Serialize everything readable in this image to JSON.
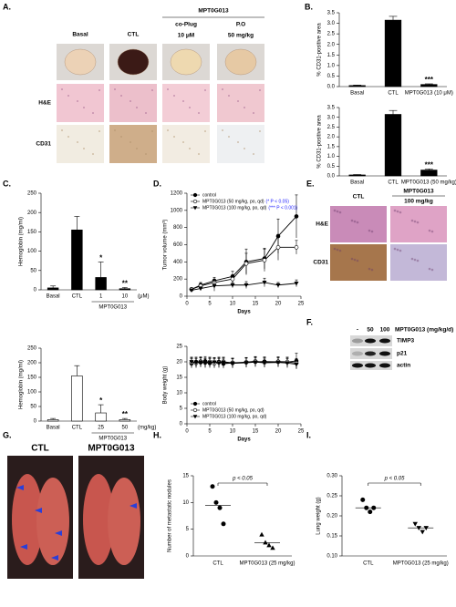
{
  "chart_data": [
    {
      "type": "bar",
      "ylabel": "% CD31-positive area",
      "categories": [
        "Basal",
        "CTL",
        "MPT0G013 (10 μM)"
      ],
      "values": [
        0.05,
        3.15,
        0.1
      ],
      "errors": [
        0.02,
        0.18,
        0.03
      ],
      "significance": [
        null,
        null,
        "***"
      ],
      "color": "#000000",
      "ylim": [
        0,
        3.5
      ],
      "yticks": [
        {
          "value": 0,
          "label": "0.0"
        },
        0.5,
        {
          "value": 1,
          "label": "1.0"
        },
        1.5,
        {
          "value": 2,
          "label": "2.0"
        },
        2.5,
        {
          "value": 3,
          "label": "3.0"
        },
        3.5
      ]
    },
    {
      "type": "bar",
      "ylabel": "% CD31-positive area",
      "categories": [
        "Basal",
        "CTL",
        "MPT0G013 (50 mg/kg)"
      ],
      "values": [
        0.05,
        3.15,
        0.3
      ],
      "errors": [
        0.02,
        0.2,
        0.06
      ],
      "significance": [
        null,
        null,
        "***"
      ],
      "color": "#000000",
      "ylim": [
        0,
        3.5
      ],
      "yticks": [
        {
          "value": 0,
          "label": "0.0"
        },
        0.5,
        {
          "value": 1,
          "label": "1.0"
        },
        1.5,
        {
          "value": 2,
          "label": "2.0"
        },
        2.5,
        {
          "value": 3,
          "label": "3.0"
        },
        3.5
      ]
    },
    {
      "type": "bar",
      "ylabel": "Hemoglobin (mg/ml)",
      "categories": [
        "Basal",
        "CTL",
        "1",
        "10"
      ],
      "group": {
        "label": "MPT0G013",
        "unit": "(μM)"
      },
      "values": [
        5,
        155,
        32,
        3
      ],
      "errors": [
        5,
        35,
        40,
        3
      ],
      "significance": [
        null,
        null,
        "*",
        "**"
      ],
      "color": "#000000",
      "ylim": [
        0,
        250
      ],
      "yticks": [
        0,
        50,
        100,
        150,
        200,
        250
      ]
    },
    {
      "type": "bar",
      "ylabel": "Hemoglobin (mg/ml)",
      "categories": [
        "Basal",
        "CTL",
        "25",
        "50"
      ],
      "group": {
        "label": "MPT0G013",
        "unit": "(mg/kg)"
      },
      "values": [
        5,
        155,
        28,
        5
      ],
      "errors": [
        4,
        35,
        28,
        4
      ],
      "significance": [
        null,
        null,
        "*",
        "**"
      ],
      "color": "#ffffff",
      "ylim": [
        0,
        250
      ],
      "yticks": [
        0,
        50,
        100,
        150,
        200,
        250
      ]
    },
    {
      "type": "line",
      "ylabel": "Tumor volume (mm³)",
      "xlabel": "Days",
      "legend": "upper left",
      "x": [
        1,
        3,
        6,
        10,
        13,
        17,
        20,
        24
      ],
      "series": [
        {
          "name": "control",
          "marker": "circle",
          "color": "#000000",
          "fill": "#000000",
          "values": [
            80,
            130,
            180,
            230,
            400,
            440,
            700,
            930
          ],
          "errors": [
            20,
            30,
            40,
            60,
            150,
            120,
            200,
            250
          ]
        },
        {
          "name": "MPT0G013 (50 mg/kg, po, qd)",
          "note": "(* P < 0.05)",
          "note_color": "#1a1aff",
          "marker": "circle",
          "color": "#000000",
          "fill": "#ffffff",
          "values": [
            80,
            120,
            160,
            200,
            380,
            420,
            570,
            570
          ],
          "errors": [
            20,
            30,
            40,
            50,
            120,
            130,
            150,
            80
          ]
        },
        {
          "name": "MPT0G013 (100 mg/kg, po, qd)",
          "note": "(*** P < 0.001)",
          "note_color": "#1a1aff",
          "marker": "triangle-down",
          "color": "#000000",
          "fill": "#000000",
          "values": [
            70,
            90,
            120,
            130,
            130,
            160,
            130,
            150
          ],
          "errors": [
            15,
            20,
            60,
            30,
            40,
            50,
            30,
            40
          ]
        }
      ],
      "xlim": [
        0,
        25
      ],
      "xticks": [
        0,
        5,
        10,
        15,
        20,
        25
      ],
      "ylim": [
        0,
        1200
      ],
      "yticks": [
        0,
        200,
        400,
        600,
        800,
        1000,
        1200
      ]
    },
    {
      "type": "line",
      "ylabel": "Body weight (g)",
      "xlabel": "Days",
      "legend": "lower left",
      "x": [
        1,
        2,
        3,
        4,
        5,
        6,
        7,
        8,
        10,
        13,
        15,
        17,
        20,
        22,
        24
      ],
      "series": [
        {
          "name": "control",
          "marker": "circle",
          "color": "#000000",
          "fill": "#000000",
          "values": [
            19.5,
            20,
            19.8,
            20.2,
            19.6,
            19.8,
            20,
            19.4,
            19.6,
            19.8,
            20,
            20.1,
            20,
            19.9,
            20.3
          ],
          "errors": [
            1.5,
            1.5,
            1.5,
            1.5,
            1.5,
            1.5,
            1.5,
            1.5,
            1.5,
            1.5,
            1.5,
            1.5,
            1.5,
            1.5,
            2.5
          ]
        },
        {
          "name": "MPT0G013 (50 mg/kg, po, qd)",
          "marker": "circle",
          "color": "#000000",
          "fill": "#ffffff",
          "values": [
            19.8,
            19.6,
            20.1,
            19.7,
            20,
            19.5,
            19.8,
            20,
            19.7,
            19.9,
            20.2,
            19.8,
            20.1,
            20,
            19.6
          ],
          "errors": [
            1.5,
            1.5,
            1.5,
            1.5,
            1.5,
            1.5,
            1.5,
            1.5,
            1.5,
            1.5,
            1.5,
            1.5,
            1.5,
            1.5,
            1.5
          ]
        },
        {
          "name": "MPT0G013 (100 mg/kg, po, qd)",
          "marker": "triangle-down",
          "color": "#000000",
          "fill": "#000000",
          "values": [
            20,
            19.7,
            19.9,
            19.6,
            19.8,
            19.9,
            19.6,
            19.8,
            19.5,
            19.7,
            19.9,
            19.7,
            19.8,
            19.6,
            19.2
          ],
          "errors": [
            1.5,
            1.5,
            1.5,
            1.5,
            1.5,
            1.5,
            1.5,
            1.5,
            1.5,
            1.5,
            1.5,
            1.5,
            1.5,
            1.5,
            1.5
          ]
        }
      ],
      "xlim": [
        0,
        25
      ],
      "xticks": [
        0,
        5,
        10,
        15,
        20,
        25
      ],
      "ylim": [
        0,
        25
      ],
      "yticks": [
        0,
        5,
        10,
        15,
        20,
        25
      ]
    },
    {
      "type": "dotplot",
      "ylabel": "Number of metastatic nodules",
      "annotation": "p < 0.05",
      "groups": [
        {
          "name": "CTL",
          "marker": "circle",
          "values": [
            13,
            10,
            9,
            6
          ],
          "mean": 9.5
        },
        {
          "name": "MPT0G013 (25 mg/kg)",
          "marker": "triangle-up",
          "values": [
            4,
            2.5,
            2,
            1.5
          ],
          "mean": 2.5
        }
      ],
      "ylim": [
        0,
        15
      ],
      "yticks": [
        0,
        5,
        10,
        15
      ]
    },
    {
      "type": "dotplot",
      "ylabel": "Lung weight (g)",
      "annotation": "p < 0.05",
      "groups": [
        {
          "name": "CTL",
          "marker": "circle",
          "values": [
            0.24,
            0.22,
            0.21,
            0.22
          ],
          "mean": 0.22
        },
        {
          "name": "MPT0G013 (25 mg/kg)",
          "marker": "triangle-down",
          "values": [
            0.18,
            0.17,
            0.16,
            0.17
          ],
          "mean": 0.17
        }
      ],
      "ylim": [
        0.1,
        0.3
      ],
      "yticks": [
        {
          "value": 0.1,
          "label": "0.10"
        },
        0.15,
        {
          "value": 0.2,
          "label": "0.20"
        },
        0.25,
        {
          "value": 0.3,
          "label": "0.30"
        }
      ]
    }
  ],
  "figure": {
    "panel_labels": [
      "A.",
      "B.",
      "C.",
      "D.",
      "E.",
      "F.",
      "G.",
      "H.",
      "I."
    ],
    "panel_a": {
      "group_label": "MPT0G013",
      "columns": [
        {
          "label": "Basal"
        },
        {
          "label": "CTL"
        },
        {
          "label": "co-Plug",
          "dose": "10 μM"
        },
        {
          "label": "P.O",
          "dose": "50 mg/kg"
        }
      ],
      "rows": [
        "H&E",
        "CD31"
      ]
    },
    "panel_e": {
      "columns": [
        "CTL",
        "MPT0G013"
      ],
      "dose": "100 mg/kg",
      "rows": [
        "H&E",
        "CD31"
      ]
    },
    "panel_f": {
      "lanes": [
        "-",
        "50",
        "100"
      ],
      "treatment": "MPT0G013 (mg/kg/d)",
      "proteins": [
        "TIMP3",
        "p21",
        "actin"
      ]
    },
    "panel_g": {
      "columns": [
        "CTL",
        "MPT0G013"
      ]
    }
  }
}
